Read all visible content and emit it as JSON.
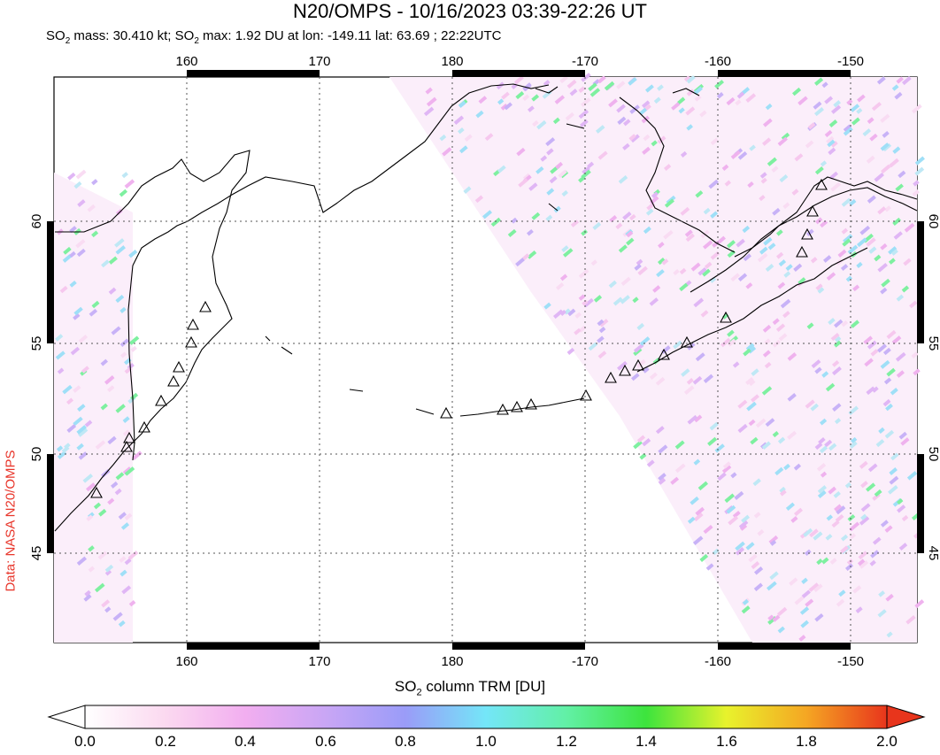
{
  "header": {
    "title": "N20/OMPS - 10/16/2023 03:39-22:26 UT",
    "subtitle_parts": [
      "SO",
      "2",
      " mass: 30.410 kt; SO",
      "2",
      " max: 1.92 DU at lon: -149.11 lat: 63.69 ; 22:22UTC"
    ]
  },
  "credit": "Data: NASA N20/OMPS",
  "map": {
    "lon_ticks": [
      "160",
      "170",
      "180",
      "-170",
      "-160",
      "-150"
    ],
    "lat_ticks": [
      "60",
      "55",
      "50",
      "45"
    ],
    "grid": "dotted",
    "lon_range": [
      150,
      215
    ],
    "lat_range": [
      41,
      65
    ]
  },
  "colorbar": {
    "label_parts": [
      "SO",
      "2",
      " column TRM [DU]"
    ],
    "ticks": [
      "0.0",
      "0.2",
      "0.4",
      "0.6",
      "0.8",
      "1.0",
      "1.2",
      "1.4",
      "1.6",
      "1.8",
      "2.0"
    ],
    "min": 0.0,
    "max": 2.0,
    "colors": [
      "#ffffff",
      "#fbd9f0",
      "#f2aef0",
      "#c9a6f5",
      "#9a9cf8",
      "#74e6f8",
      "#62f0a6",
      "#3de43d",
      "#e8f22c",
      "#f5a623",
      "#e8351c"
    ]
  }
}
